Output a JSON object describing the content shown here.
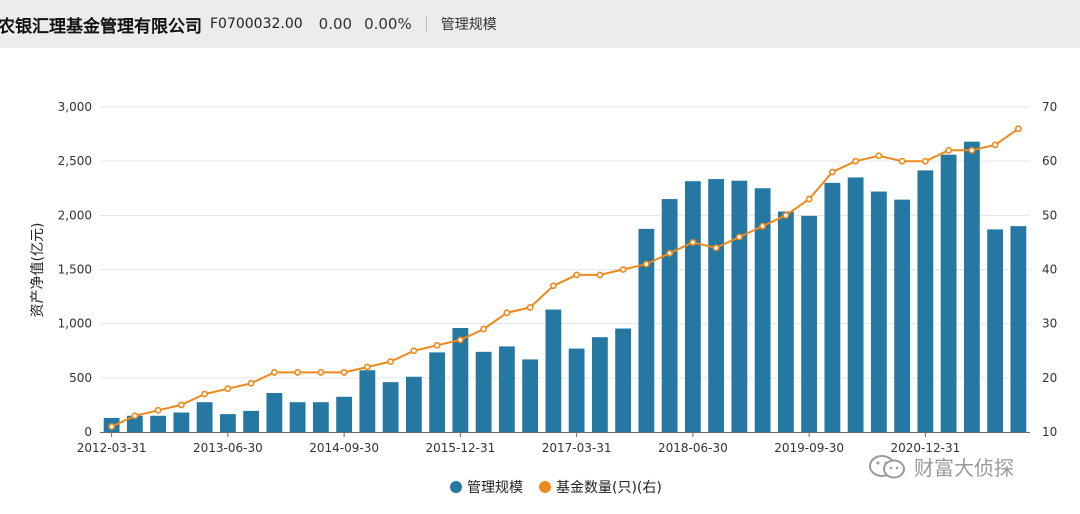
{
  "header": {
    "name": "农银汇理基金管理有限公司",
    "code": "F0700032.00",
    "value": "0.00",
    "change_pct": "0.00%",
    "tab": "管理规模"
  },
  "watermark": "财富大侦探",
  "colors": {
    "bar": "#2478a2",
    "line": "#f0891c",
    "grid": "#e6e6e6"
  },
  "chart_data": {
    "type": "bar",
    "ylabel": "资产净值(亿元)",
    "ylim": [
      0,
      3000
    ],
    "y_ticks": [
      "0",
      "500",
      "1,000",
      "1,500",
      "2,000",
      "2,500",
      "3,000"
    ],
    "y2lim": [
      10,
      70
    ],
    "y2_ticks": [
      "10",
      "20",
      "30",
      "40",
      "50",
      "60",
      "70"
    ],
    "x_tick_labels": [
      "2012-03-31",
      "2013-06-30",
      "2014-09-30",
      "2015-12-31",
      "2017-03-31",
      "2018-06-30",
      "2019-09-30",
      "2020-12-31"
    ],
    "legend_position": "bottom",
    "grid": true,
    "series": [
      {
        "name": "管理规模",
        "type": "bar",
        "axis": "left",
        "values": [
          130,
          150,
          150,
          180,
          275,
          165,
          195,
          360,
          275,
          275,
          325,
          570,
          460,
          510,
          735,
          960,
          740,
          790,
          670,
          1130,
          770,
          875,
          955,
          1875,
          2150,
          2315,
          2335,
          2320,
          2250,
          2035,
          1995,
          2300,
          2350,
          2220,
          2145,
          2415,
          2560,
          2680,
          1870,
          1900
        ]
      },
      {
        "name": "基金数量(只)(右)",
        "type": "line",
        "axis": "right",
        "values": [
          11,
          13,
          14,
          15,
          17,
          18,
          19,
          21,
          21,
          21,
          21,
          22,
          23,
          25,
          26,
          27,
          29,
          32,
          33,
          37,
          39,
          39,
          40,
          41,
          43,
          45,
          44,
          46,
          48,
          50,
          53,
          58,
          60,
          61,
          60,
          60,
          62,
          62,
          63,
          66
        ]
      }
    ]
  }
}
